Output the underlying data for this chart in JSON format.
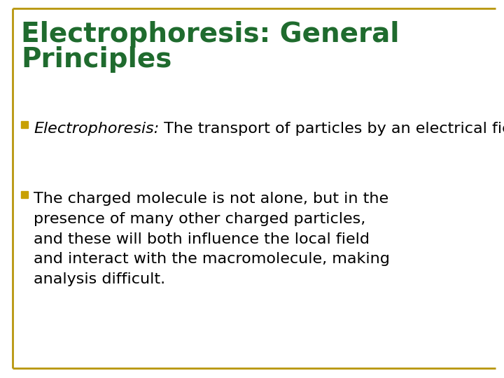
{
  "title_line1": "Electrophoresis: General",
  "title_line2": "Principles",
  "title_color": "#1f6b2e",
  "title_fontsize": 28,
  "title_weight": "bold",
  "background_color": "#ffffff",
  "border_color": "#b8960c",
  "bullet_color": "#c8a000",
  "bullet1_italic": "Electrophoresis:",
  "bullet1_normal": " The transport of particles by an electrical field.",
  "bullet2_text": "The charged molecule is not alone, but in the\npresence of many other charged particles,\nand these will both influence the local field\nand interact with the macromolecule, making\nanalysis difficult.",
  "text_color": "#000000",
  "text_fontsize": 16,
  "border_lw": 2.0
}
